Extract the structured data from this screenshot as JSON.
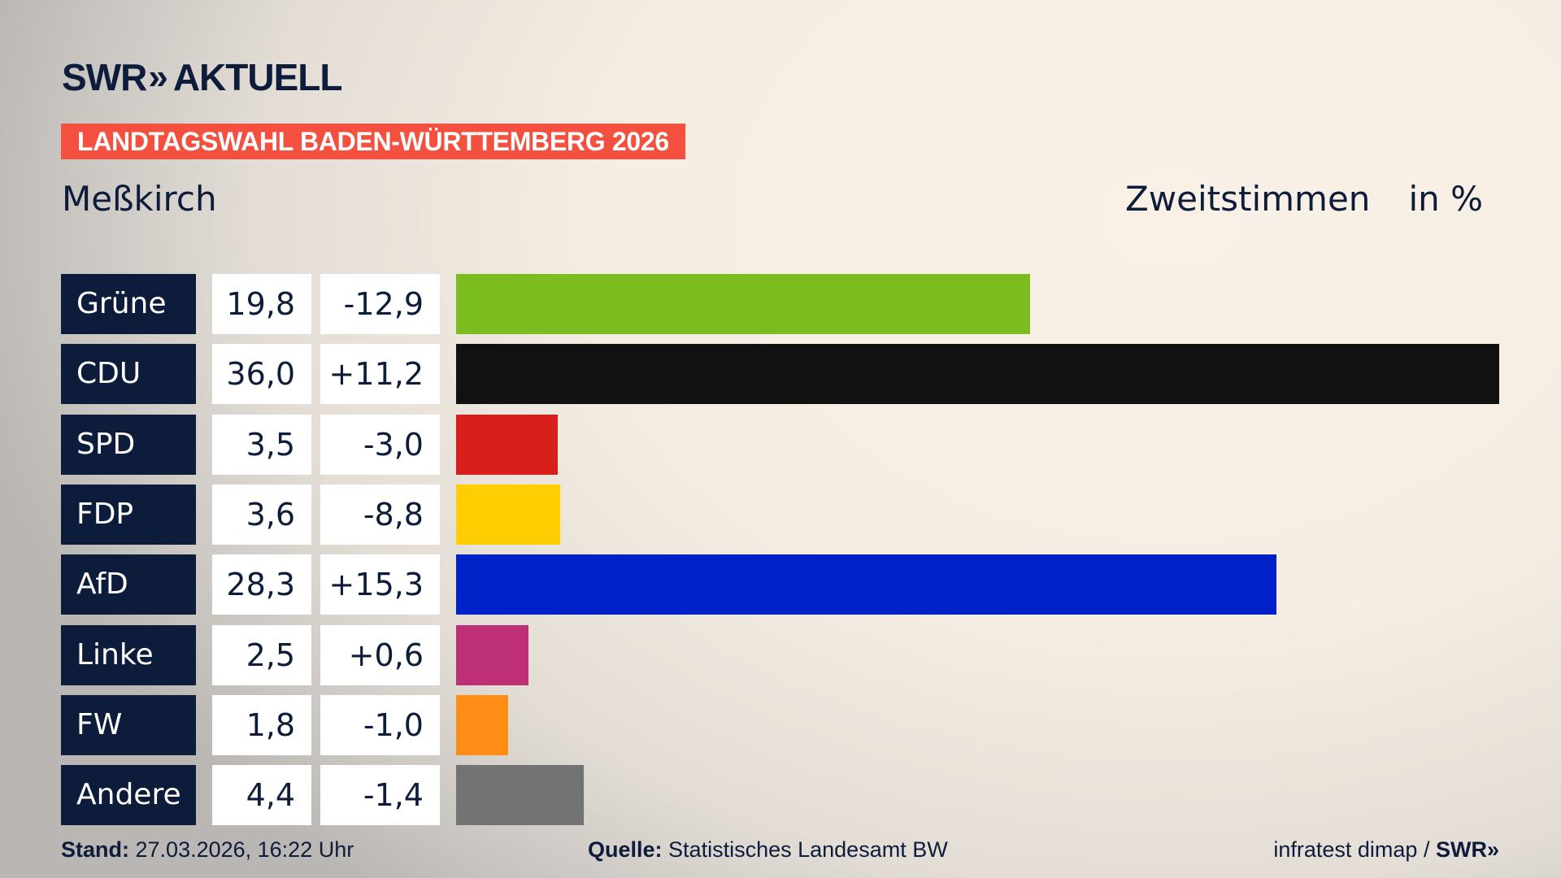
{
  "header": {
    "logo_text": "SWR",
    "logo_suffix": "AKTUELL",
    "banner": "LANDTAGSWAHL BADEN-WÜRTTEMBERG 2026",
    "region": "Meßkirch",
    "vote_type": "Zweitstimmen",
    "unit": "in %"
  },
  "chart_data": {
    "type": "bar",
    "orientation": "horizontal",
    "categories": [
      "Grüne",
      "CDU",
      "SPD",
      "FDP",
      "AfD",
      "Linke",
      "FW",
      "Andere"
    ],
    "values": [
      19.8,
      36.0,
      3.5,
      3.6,
      28.3,
      2.5,
      1.8,
      4.4
    ],
    "value_labels": [
      "19,8",
      "36,0",
      "3,5",
      "3,6",
      "28,3",
      "2,5",
      "1,8",
      "4,4"
    ],
    "changes": [
      -12.9,
      11.2,
      -3.0,
      -8.8,
      15.3,
      0.6,
      -1.0,
      -1.4
    ],
    "change_labels": [
      "-12,9",
      "+11,2",
      "-3,0",
      "-8,8",
      "+15,3",
      "+0,6",
      "-1,0",
      "-1,4"
    ],
    "colors": [
      "#7bbd1e",
      "#111111",
      "#d7201c",
      "#ffcd00",
      "#0021c8",
      "#bd3075",
      "#ff8c14",
      "#737373"
    ],
    "xlim": [
      0,
      36.0
    ],
    "grid": false
  },
  "footer": {
    "stand_label": "Stand:",
    "stand_value": "27.03.2026, 16:22 Uhr",
    "source_label": "Quelle:",
    "source_value": "Statistisches Landesamt BW",
    "credit": "infratest dimap /",
    "credit_logo": "SWR"
  },
  "colors": {
    "navy": "#0c1c3a",
    "banner": "#f4503f"
  }
}
